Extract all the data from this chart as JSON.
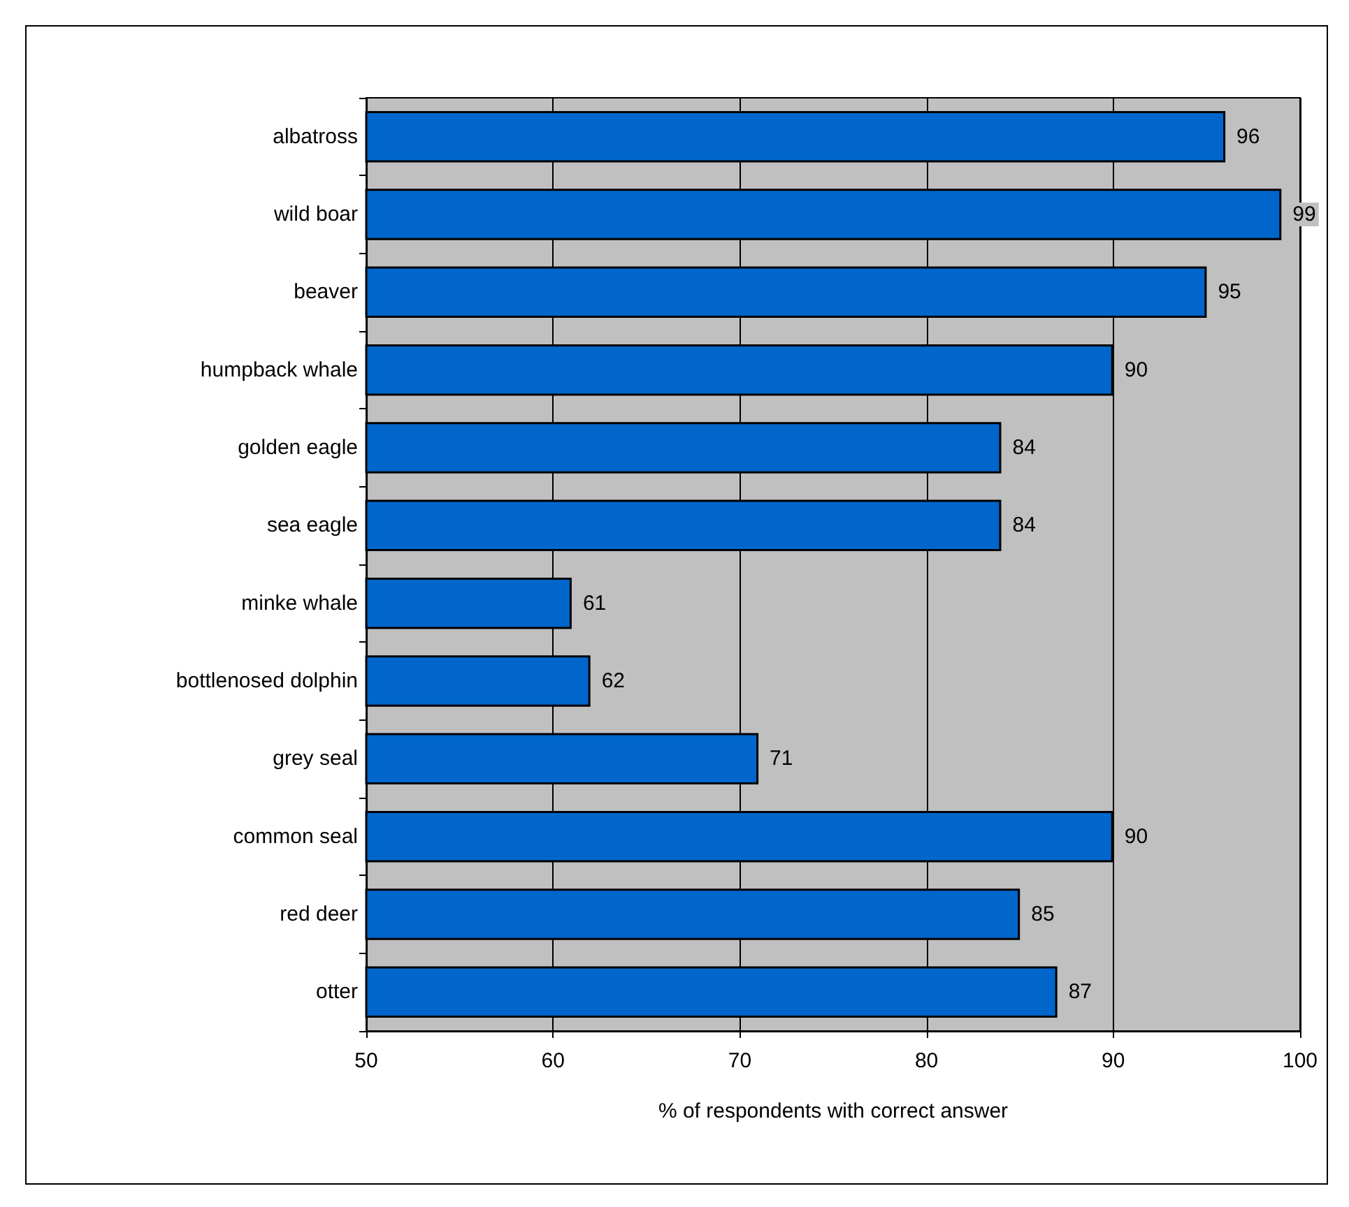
{
  "chart_data": {
    "type": "bar",
    "orientation": "horizontal",
    "xlabel": "% of respondents with correct answer",
    "categories": [
      "albatross",
      "wild boar",
      "beaver",
      "humpback whale",
      "golden eagle",
      "sea eagle",
      "minke whale",
      "bottlenosed dolphin",
      "grey seal",
      "common seal",
      "red deer",
      "otter"
    ],
    "values": [
      96,
      99,
      95,
      90,
      84,
      84,
      61,
      62,
      71,
      90,
      85,
      87
    ],
    "color": "#0066cc",
    "xlim": [
      50,
      100
    ],
    "xticks": [
      50,
      60,
      70,
      80,
      90,
      100
    ],
    "grid": "x",
    "data_labels": true
  }
}
